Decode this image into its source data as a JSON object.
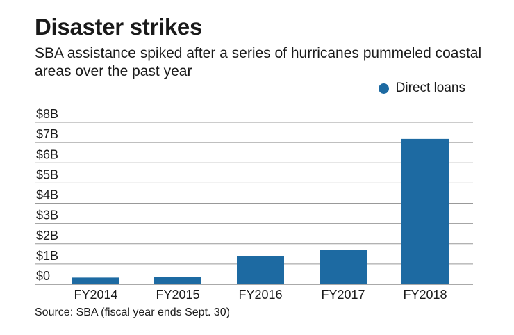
{
  "title": "Disaster strikes",
  "subtitle": "SBA assistance spiked after a series of hurricanes pummeled coastal areas over the past year",
  "source": "Source: SBA (fiscal year ends Sept. 30)",
  "chart_data": {
    "type": "bar",
    "categories": [
      "FY2014",
      "FY2015",
      "FY2016",
      "FY2017",
      "FY2018"
    ],
    "series": [
      {
        "name": "Direct loans",
        "values": [
          0.33,
          0.37,
          1.39,
          1.69,
          7.18
        ],
        "color": "#1d6aa2"
      }
    ],
    "ylim": [
      0,
      8
    ],
    "yticks": [
      0,
      1,
      2,
      3,
      4,
      5,
      6,
      7,
      8
    ],
    "ytick_labels": [
      "$0",
      "$1B",
      "$2B",
      "$3B",
      "$4B",
      "$5B",
      "$6B",
      "$7B",
      "$8B"
    ],
    "legend_position": "top-right",
    "grid": true,
    "unit": "billions USD"
  }
}
